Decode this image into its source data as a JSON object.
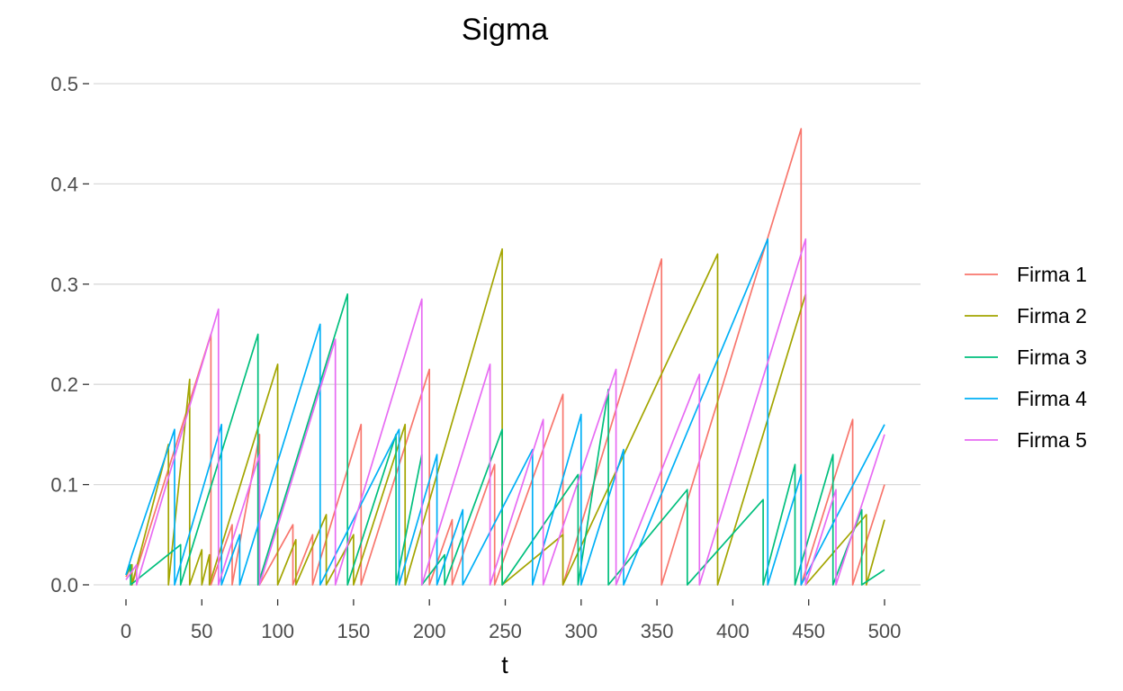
{
  "chart_data": {
    "type": "line",
    "title": "Sigma",
    "xlabel": "t",
    "ylabel": "",
    "xlim": [
      0,
      500
    ],
    "ylim": [
      0,
      0.5
    ],
    "x_ticks": [
      0,
      50,
      100,
      150,
      200,
      250,
      300,
      350,
      400,
      450,
      500
    ],
    "y_ticks": [
      0.0,
      0.1,
      0.2,
      0.3,
      0.4,
      0.5
    ],
    "y_tick_labels": [
      "0.0",
      "0.1",
      "0.2",
      "0.3",
      "0.4",
      "0.5"
    ],
    "grid": "horizontal",
    "legend_position": "right",
    "series": [
      {
        "name": "Firma 1",
        "color": "#F8766D",
        "points": [
          [
            0,
            0.008
          ],
          [
            4,
            0.02
          ],
          [
            4,
            0
          ],
          [
            56,
            0.25
          ],
          [
            56,
            0
          ],
          [
            70,
            0.06
          ],
          [
            70,
            0
          ],
          [
            88,
            0.15
          ],
          [
            88,
            0
          ],
          [
            110,
            0.06
          ],
          [
            110,
            0
          ],
          [
            123,
            0.05
          ],
          [
            123,
            0
          ],
          [
            155,
            0.16
          ],
          [
            155,
            0
          ],
          [
            200,
            0.215
          ],
          [
            200,
            0
          ],
          [
            215,
            0.065
          ],
          [
            215,
            0
          ],
          [
            243,
            0.12
          ],
          [
            243,
            0
          ],
          [
            288,
            0.19
          ],
          [
            288,
            0
          ],
          [
            353,
            0.325
          ],
          [
            353,
            0
          ],
          [
            445,
            0.455
          ],
          [
            445,
            0
          ],
          [
            479,
            0.165
          ],
          [
            479,
            0
          ],
          [
            500,
            0.1
          ]
        ]
      },
      {
        "name": "Firma 2",
        "color": "#A3A500",
        "points": [
          [
            0,
            0.01
          ],
          [
            4,
            0.02
          ],
          [
            4,
            0
          ],
          [
            28,
            0.14
          ],
          [
            28,
            0
          ],
          [
            42,
            0.205
          ],
          [
            42,
            0
          ],
          [
            50,
            0.035
          ],
          [
            50,
            0
          ],
          [
            55,
            0.03
          ],
          [
            55,
            0
          ],
          [
            100,
            0.22
          ],
          [
            100,
            0
          ],
          [
            112,
            0.045
          ],
          [
            112,
            0
          ],
          [
            132,
            0.07
          ],
          [
            132,
            0
          ],
          [
            150,
            0.05
          ],
          [
            150,
            0
          ],
          [
            184,
            0.16
          ],
          [
            184,
            0
          ],
          [
            248,
            0.335
          ],
          [
            248,
            0
          ],
          [
            288,
            0.05
          ],
          [
            288,
            0
          ],
          [
            390,
            0.33
          ],
          [
            390,
            0
          ],
          [
            448,
            0.29
          ],
          [
            448,
            0
          ],
          [
            488,
            0.07
          ],
          [
            488,
            0
          ],
          [
            500,
            0.065
          ]
        ]
      },
      {
        "name": "Firma 3",
        "color": "#00BF7D",
        "points": [
          [
            0,
            0.01
          ],
          [
            3,
            0.02
          ],
          [
            3,
            0
          ],
          [
            36,
            0.04
          ],
          [
            36,
            0
          ],
          [
            87,
            0.25
          ],
          [
            87,
            0
          ],
          [
            146,
            0.29
          ],
          [
            146,
            0
          ],
          [
            178,
            0.15
          ],
          [
            178,
            0
          ],
          [
            195,
            0.13
          ],
          [
            195,
            0
          ],
          [
            210,
            0.03
          ],
          [
            210,
            0
          ],
          [
            248,
            0.155
          ],
          [
            248,
            0
          ],
          [
            298,
            0.11
          ],
          [
            298,
            0
          ],
          [
            318,
            0.195
          ],
          [
            318,
            0
          ],
          [
            370,
            0.095
          ],
          [
            370,
            0
          ],
          [
            420,
            0.085
          ],
          [
            420,
            0
          ],
          [
            441,
            0.12
          ],
          [
            441,
            0
          ],
          [
            466,
            0.13
          ],
          [
            466,
            0
          ],
          [
            485,
            0.075
          ],
          [
            485,
            0
          ],
          [
            500,
            0.015
          ]
        ]
      },
      {
        "name": "Firma 4",
        "color": "#00B0F6",
        "points": [
          [
            0,
            0.01
          ],
          [
            4,
            0.03
          ],
          [
            32,
            0.155
          ],
          [
            32,
            0
          ],
          [
            63,
            0.16
          ],
          [
            63,
            0
          ],
          [
            75,
            0.05
          ],
          [
            75,
            0
          ],
          [
            128,
            0.26
          ],
          [
            128,
            0
          ],
          [
            180,
            0.155
          ],
          [
            180,
            0
          ],
          [
            205,
            0.13
          ],
          [
            205,
            0
          ],
          [
            222,
            0.075
          ],
          [
            222,
            0
          ],
          [
            268,
            0.135
          ],
          [
            268,
            0
          ],
          [
            300,
            0.17
          ],
          [
            300,
            0
          ],
          [
            328,
            0.135
          ],
          [
            328,
            0
          ],
          [
            423,
            0.345
          ],
          [
            423,
            0
          ],
          [
            445,
            0.11
          ],
          [
            445,
            0
          ],
          [
            500,
            0.16
          ]
        ]
      },
      {
        "name": "Firma 5",
        "color": "#E76BF3",
        "points": [
          [
            0,
            0.005
          ],
          [
            7,
            0.02
          ],
          [
            7,
            0
          ],
          [
            61,
            0.275
          ],
          [
            61,
            0
          ],
          [
            88,
            0.13
          ],
          [
            88,
            0
          ],
          [
            138,
            0.245
          ],
          [
            138,
            0
          ],
          [
            195,
            0.285
          ],
          [
            195,
            0
          ],
          [
            240,
            0.22
          ],
          [
            240,
            0
          ],
          [
            275,
            0.165
          ],
          [
            275,
            0
          ],
          [
            323,
            0.215
          ],
          [
            323,
            0
          ],
          [
            378,
            0.21
          ],
          [
            378,
            0
          ],
          [
            448,
            0.345
          ],
          [
            448,
            0
          ],
          [
            468,
            0.095
          ],
          [
            468,
            0
          ],
          [
            500,
            0.15
          ]
        ]
      }
    ]
  }
}
